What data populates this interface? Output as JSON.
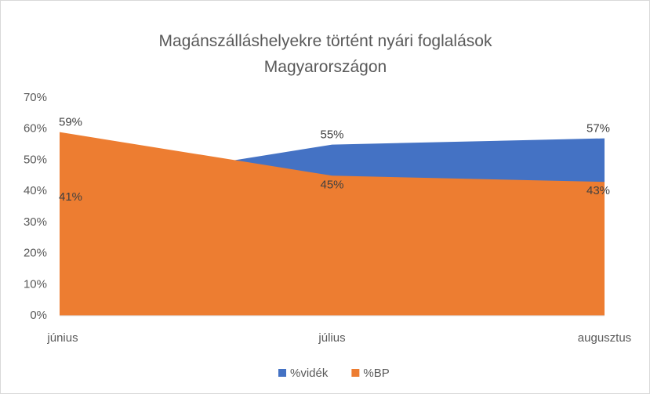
{
  "chart_data": {
    "type": "area",
    "title": "Magánszálláshelyekre történt nyári foglalások Magyarországon",
    "categories": [
      "június",
      "július",
      "augusztus"
    ],
    "series": [
      {
        "name": "%vidék",
        "color": "#4472c4",
        "values": [
          41,
          55,
          57
        ],
        "value_labels": [
          "41%",
          "55%",
          "57%"
        ]
      },
      {
        "name": "%BP",
        "color": "#ed7d31",
        "values": [
          59,
          45,
          43
        ],
        "value_labels": [
          "59%",
          "45%",
          "43%"
        ]
      }
    ],
    "ylim": [
      0,
      70
    ],
    "yticks": [
      {
        "value": 0,
        "label": "0%"
      },
      {
        "value": 10,
        "label": "10%"
      },
      {
        "value": 20,
        "label": "20%"
      },
      {
        "value": 30,
        "label": "30%"
      },
      {
        "value": 40,
        "label": "40%"
      },
      {
        "value": 50,
        "label": "50%"
      },
      {
        "value": 60,
        "label": "60%"
      },
      {
        "value": 70,
        "label": "70%"
      }
    ],
    "grid": false,
    "legend": "bottom"
  }
}
